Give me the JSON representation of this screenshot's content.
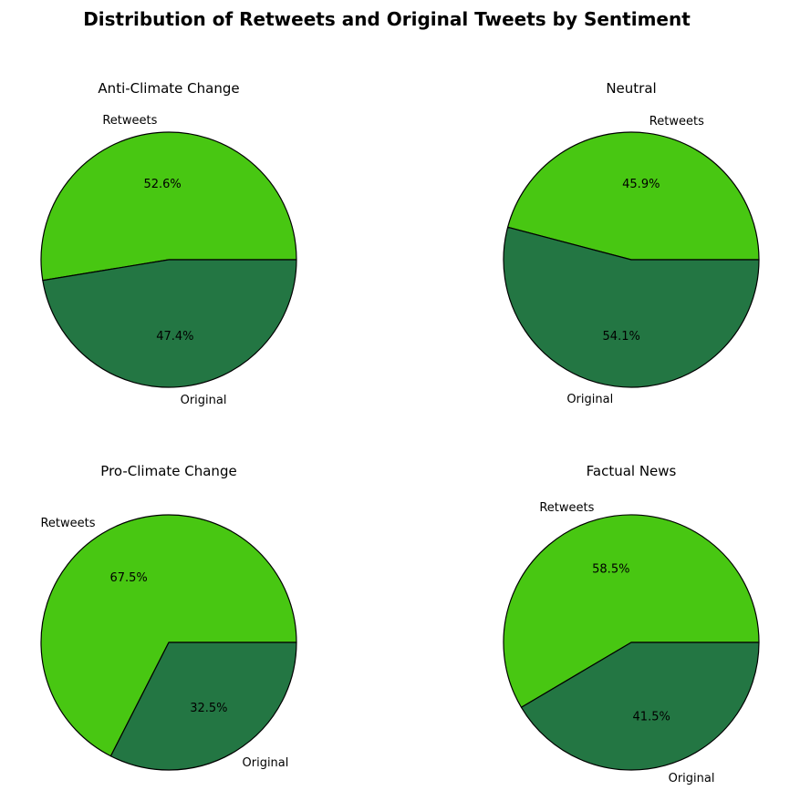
{
  "title": "Distribution of Retweets and Original Tweets by Sentiment",
  "chart_data": [
    {
      "type": "pie",
      "title": "Anti-Climate Change",
      "labels": [
        "Retweets",
        "Original"
      ],
      "values": [
        52.6,
        47.4
      ],
      "pct_labels": [
        "52.6%",
        "47.4%"
      ],
      "colors": [
        "#48c712",
        "#237643"
      ]
    },
    {
      "type": "pie",
      "title": "Neutral",
      "labels": [
        "Retweets",
        "Original"
      ],
      "values": [
        45.9,
        54.1
      ],
      "pct_labels": [
        "45.9%",
        "54.1%"
      ],
      "colors": [
        "#48c712",
        "#237643"
      ]
    },
    {
      "type": "pie",
      "title": "Pro-Climate Change",
      "labels": [
        "Retweets",
        "Original"
      ],
      "values": [
        67.5,
        32.5
      ],
      "pct_labels": [
        "67.5%",
        "32.5%"
      ],
      "colors": [
        "#48c712",
        "#237643"
      ]
    },
    {
      "type": "pie",
      "title": "Factual News",
      "labels": [
        "Retweets",
        "Original"
      ],
      "values": [
        58.5,
        41.5
      ],
      "pct_labels": [
        "58.5%",
        "41.5%"
      ],
      "colors": [
        "#48c712",
        "#237643"
      ]
    }
  ]
}
